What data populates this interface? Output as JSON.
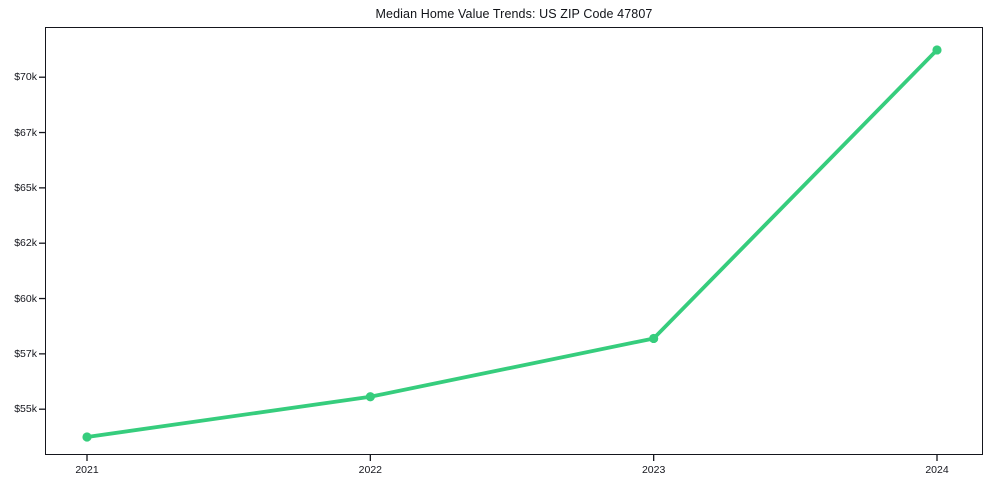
{
  "title": "Median Home Value Trends: US ZIP Code 47807",
  "chart_data": {
    "type": "line",
    "title": "Median Home Value Trends: US ZIP Code 47807",
    "x_labels": [
      "2021",
      "2022",
      "2023",
      "2024"
    ],
    "x": [
      2021,
      2022,
      2023,
      2024
    ],
    "series": [
      {
        "name": "Median Home Value",
        "values": [
          53900,
          55500,
          57900,
          71400
        ]
      }
    ],
    "yticks": [
      {
        "value": 70000,
        "label": "$70k"
      },
      {
        "value": 67000,
        "label": "$67k"
      },
      {
        "value": 65000,
        "label": "$65k"
      },
      {
        "value": 62000,
        "label": "$62k"
      },
      {
        "value": 60000,
        "label": "$60k"
      },
      {
        "value": 57000,
        "label": "$57k"
      },
      {
        "value": 55000,
        "label": "$55k"
      }
    ],
    "yscale": "log",
    "ylim": [
      53200,
      72600
    ],
    "xlabel": "",
    "ylabel": "",
    "grid": false,
    "legend_position": "none",
    "marker": "circle"
  },
  "colors": {
    "line": "#36cd7d",
    "axis": "#15161d",
    "text": "#15161d",
    "background": "#ffffff"
  }
}
